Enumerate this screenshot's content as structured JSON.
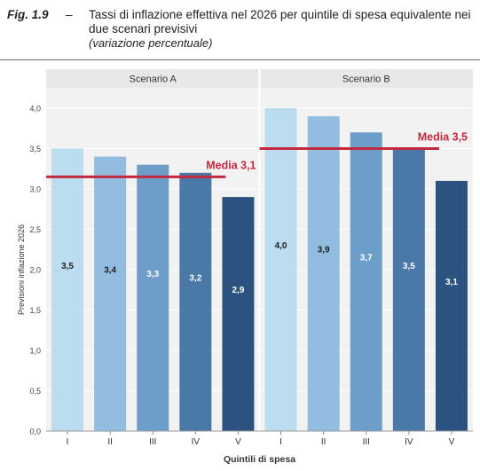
{
  "caption": {
    "fig_label": "Fig. 1.9",
    "dash": "–",
    "title": "Tassi di inflazione effettiva nel 2026 per quintile di spesa equivalente nei due scenari previsivi",
    "subtitle": "(variazione percentuale)"
  },
  "chart_data": {
    "type": "bar",
    "xlabel": "Quintili di spesa",
    "ylabel": "Previsioni inflazione 2026",
    "ylim": [
      0,
      4.0
    ],
    "yticks": [
      "0,0",
      "0,5",
      "1,0",
      "1,5",
      "2,0",
      "2,5",
      "3,0",
      "3,5",
      "4,0"
    ],
    "categories": [
      "I",
      "II",
      "III",
      "IV",
      "V"
    ],
    "bar_colors": [
      "#bcdcf0",
      "#92bde0",
      "#6c9ec9",
      "#4a79a8",
      "#2c5380"
    ],
    "mean_color": "#c4283f",
    "grid": true,
    "panels": [
      {
        "name": "Scenario A",
        "values": [
          3.5,
          3.4,
          3.3,
          3.2,
          2.9
        ],
        "value_labels": [
          "3,5",
          "3,4",
          "3,3",
          "3,2",
          "2,9"
        ],
        "mean": 3.15,
        "mean_label": "Media 3,1"
      },
      {
        "name": "Scenario B",
        "values": [
          4.0,
          3.9,
          3.7,
          3.5,
          3.1
        ],
        "value_labels": [
          "4,0",
          "3,9",
          "3,7",
          "3,5",
          "3,1"
        ],
        "mean": 3.5,
        "mean_label": "Media 3,5"
      }
    ]
  }
}
